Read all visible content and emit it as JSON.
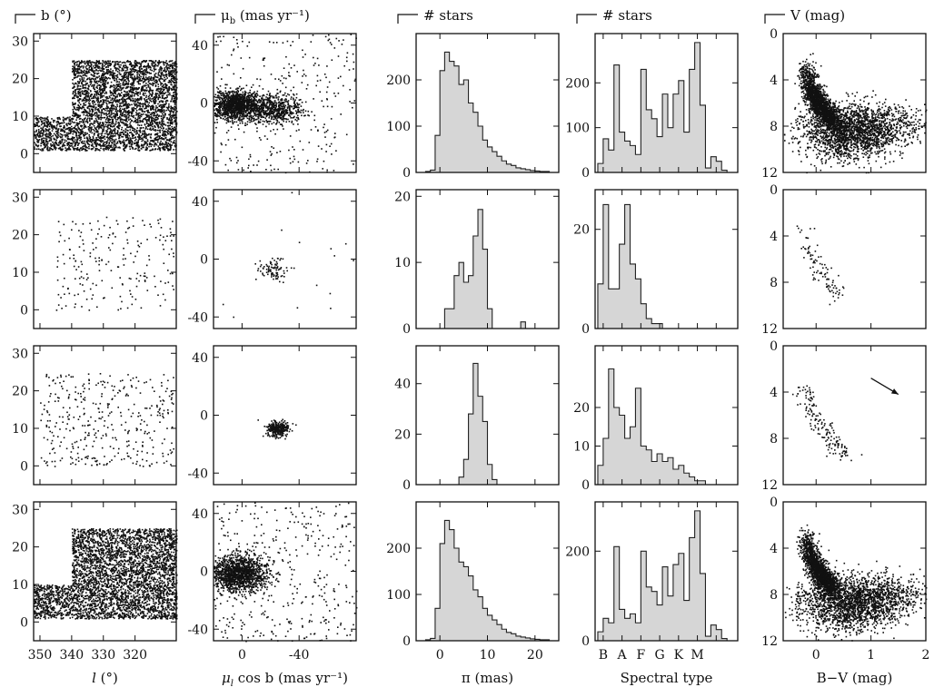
{
  "column_titles": [
    {
      "text": "b (°)"
    },
    {
      "text": "μ",
      "sub": "b",
      "rest": " (mas yr⁻¹)"
    },
    {
      "text": "# stars"
    },
    {
      "text": "# stars"
    },
    {
      "text": "V (mag)"
    }
  ],
  "xlabels": [
    {
      "text": "l",
      "rest": " (°)"
    },
    {
      "text": "μ",
      "sub": "l",
      "rest": " cos b (mas yr⁻¹)"
    },
    {
      "text": "π (mas)"
    },
    {
      "text": "Spectral type"
    },
    {
      "text": "B−V (mag)"
    }
  ],
  "chart_data": [
    {
      "type": "scatter",
      "row": 0,
      "col": 0,
      "name": "galactic-position",
      "xlim": [
        352,
        307
      ],
      "ylim": [
        -5,
        32
      ],
      "xticks": [
        350,
        340,
        330,
        320
      ],
      "yticks": [
        0,
        10,
        20,
        30
      ],
      "region": [
        [
          352,
          340,
          1,
          10
        ],
        [
          340,
          307,
          1,
          25
        ]
      ],
      "density": 1.0
    },
    {
      "type": "scatter",
      "row": 0,
      "col": 1,
      "name": "proper-motion",
      "xlim": [
        20,
        -80
      ],
      "ylim": [
        -48,
        48
      ],
      "xticks": [
        0,
        -40
      ],
      "yticks": [
        -40,
        0,
        40
      ],
      "clusters": [
        [
          5,
          -1,
          8,
          5,
          0.45
        ],
        [
          -22,
          -4,
          10,
          5,
          0.25
        ]
      ],
      "background": 0.3
    },
    {
      "type": "bar",
      "row": 0,
      "col": 2,
      "name": "parallax",
      "xlim": [
        -5,
        25
      ],
      "ylim": [
        0,
        300
      ],
      "xticks": [
        0,
        10,
        20
      ],
      "yticks": [
        0,
        100,
        200
      ],
      "bin_start": -3,
      "bin_width": 1,
      "values": [
        2,
        5,
        80,
        220,
        260,
        240,
        230,
        190,
        200,
        150,
        130,
        100,
        70,
        55,
        45,
        35,
        25,
        18,
        15,
        10,
        8,
        6,
        4,
        3,
        2,
        2
      ]
    },
    {
      "type": "bar",
      "row": 0,
      "col": 3,
      "name": "spectral-type",
      "xlim": [
        -1.5,
        25
      ],
      "ylim": [
        0,
        310
      ],
      "yticks": [
        0,
        100,
        200
      ],
      "xticks_idx": [
        0,
        3.5,
        7,
        10.5,
        14,
        17.5,
        21
      ],
      "xticklabels": [
        "B",
        "A",
        "F",
        "G",
        "K",
        "M",
        ""
      ],
      "bin_start": -1,
      "bin_width": 1,
      "values": [
        20,
        75,
        50,
        240,
        90,
        70,
        60,
        40,
        230,
        140,
        120,
        80,
        175,
        100,
        175,
        205,
        90,
        230,
        290,
        150,
        10,
        35,
        25,
        5
      ]
    },
    {
      "type": "scatter",
      "row": 0,
      "col": 4,
      "name": "color-magnitude",
      "xlim": [
        -0.6,
        2
      ],
      "ylim": [
        12,
        0
      ],
      "xticks": [
        0,
        1,
        2
      ],
      "yticks": [
        0,
        4,
        8,
        12
      ],
      "clusters": [
        [
          0.5,
          8.5,
          0.4,
          1.2,
          0.6
        ],
        [
          1.2,
          8.0,
          0.4,
          1.0,
          0.25
        ]
      ],
      "band": [
        [
          -0.2,
          2.5
        ],
        [
          0.3,
          7.5
        ]
      ],
      "density": 1.0
    },
    {
      "type": "scatter",
      "row": 1,
      "col": 0,
      "name": "galactic-position",
      "xlim": [
        352,
        307
      ],
      "ylim": [
        -5,
        32
      ],
      "xticks": [
        350,
        340,
        330,
        320
      ],
      "yticks": [
        0,
        10,
        20,
        30
      ],
      "region": [
        [
          345,
          308,
          0,
          25
        ]
      ],
      "density": 0.05
    },
    {
      "type": "scatter",
      "row": 1,
      "col": 1,
      "name": "proper-motion",
      "xlim": [
        20,
        -80
      ],
      "ylim": [
        -48,
        48
      ],
      "xticks": [
        0,
        -40
      ],
      "yticks": [
        -40,
        0,
        40
      ],
      "clusters": [
        [
          -22,
          -7,
          6,
          4,
          0.7
        ]
      ],
      "background": 0.3,
      "density": 0.05
    },
    {
      "type": "bar",
      "row": 1,
      "col": 2,
      "name": "parallax",
      "xlim": [
        -5,
        25
      ],
      "ylim": [
        0,
        21
      ],
      "xticks": [
        0,
        10,
        20
      ],
      "yticks": [
        0,
        10,
        20
      ],
      "bin_start": 1,
      "bin_width": 1,
      "values": [
        3,
        3,
        8,
        10,
        7,
        8,
        14,
        18,
        12,
        3,
        0,
        0,
        0,
        0,
        0,
        0,
        1,
        0,
        0,
        0
      ]
    },
    {
      "type": "bar",
      "row": 1,
      "col": 3,
      "name": "spectral-type",
      "xlim": [
        -1.5,
        25
      ],
      "ylim": [
        0,
        28
      ],
      "yticks": [
        0,
        20
      ],
      "xticks_idx": [
        0,
        3.5,
        7,
        10.5,
        14,
        17.5,
        21
      ],
      "xticklabels": [
        "B",
        "A",
        "F",
        "G",
        "K",
        "M",
        ""
      ],
      "bin_start": -1,
      "bin_width": 1,
      "values": [
        9,
        25,
        8,
        8,
        17,
        25,
        13,
        10,
        5,
        2,
        1,
        1,
        0,
        0,
        0,
        0,
        0,
        0,
        0,
        0,
        0,
        0,
        0,
        0
      ]
    },
    {
      "type": "scatter",
      "row": 1,
      "col": 4,
      "name": "color-magnitude",
      "xlim": [
        -0.6,
        2
      ],
      "ylim": [
        12,
        0
      ],
      "xticks": [
        0,
        1,
        2
      ],
      "yticks": [
        0,
        4,
        8,
        12
      ],
      "band": [
        [
          -0.25,
          2.5
        ],
        [
          0.4,
          9.0
        ]
      ],
      "density": 0.06
    },
    {
      "type": "scatter",
      "row": 2,
      "col": 0,
      "name": "galactic-position",
      "xlim": [
        352,
        307
      ],
      "ylim": [
        -5,
        32
      ],
      "xticks": [
        350,
        340,
        330,
        320
      ],
      "yticks": [
        0,
        10,
        20,
        30
      ],
      "region": [
        [
          350,
          308,
          0,
          25
        ]
      ],
      "density": 0.08
    },
    {
      "type": "scatter",
      "row": 2,
      "col": 1,
      "name": "proper-motion",
      "xlim": [
        20,
        -80
      ],
      "ylim": [
        -48,
        48
      ],
      "xticks": [
        0,
        -40
      ],
      "yticks": [
        -40,
        0,
        40
      ],
      "clusters": [
        [
          -25,
          -9,
          4,
          2.5,
          1.0
        ]
      ],
      "background": 0,
      "density": 0.12
    },
    {
      "type": "bar",
      "row": 2,
      "col": 2,
      "name": "parallax",
      "xlim": [
        -5,
        25
      ],
      "ylim": [
        0,
        55
      ],
      "xticks": [
        0,
        10,
        20
      ],
      "yticks": [
        0,
        20,
        40
      ],
      "bin_start": 4,
      "bin_width": 1,
      "values": [
        3,
        10,
        28,
        48,
        35,
        25,
        8,
        2,
        0
      ]
    },
    {
      "type": "bar",
      "row": 2,
      "col": 3,
      "name": "spectral-type",
      "xlim": [
        -1.5,
        25
      ],
      "ylim": [
        0,
        36
      ],
      "yticks": [
        0,
        10,
        20
      ],
      "xticks_idx": [
        0,
        3.5,
        7,
        10.5,
        14,
        17.5,
        21
      ],
      "xticklabels": [
        "B",
        "A",
        "F",
        "G",
        "K",
        "M",
        ""
      ],
      "bin_start": -1,
      "bin_width": 1,
      "values": [
        5,
        12,
        30,
        20,
        18,
        12,
        15,
        25,
        10,
        9,
        6,
        8,
        6,
        7,
        4,
        5,
        3,
        2,
        1,
        1,
        0,
        0,
        0,
        0
      ]
    },
    {
      "type": "scatter",
      "row": 2,
      "col": 4,
      "name": "color-magnitude",
      "xlim": [
        -0.6,
        2
      ],
      "ylim": [
        12,
        0
      ],
      "xticks": [
        0,
        1,
        2
      ],
      "yticks": [
        0,
        4,
        8,
        12
      ],
      "band": [
        [
          -0.25,
          2.5
        ],
        [
          0.6,
          9.5
        ]
      ],
      "density": 0.1,
      "arrow": [
        [
          1.0,
          2.8
        ],
        [
          1.5,
          4.2
        ]
      ]
    },
    {
      "type": "scatter",
      "row": 3,
      "col": 0,
      "name": "galactic-position",
      "xlim": [
        352,
        307
      ],
      "ylim": [
        -5,
        32
      ],
      "xticks": [
        350,
        340,
        330,
        320
      ],
      "yticks": [
        0,
        10,
        20,
        30
      ],
      "region": [
        [
          352,
          340,
          1,
          10
        ],
        [
          340,
          307,
          1,
          25
        ]
      ],
      "density": 1.0
    },
    {
      "type": "scatter",
      "row": 3,
      "col": 1,
      "name": "proper-motion",
      "xlim": [
        20,
        -80
      ],
      "ylim": [
        -48,
        48
      ],
      "xticks": [
        0,
        -40
      ],
      "yticks": [
        -40,
        0,
        40
      ],
      "clusters": [
        [
          3,
          -1,
          10,
          6,
          0.55
        ]
      ],
      "background": 0.4
    },
    {
      "type": "bar",
      "row": 3,
      "col": 2,
      "name": "parallax",
      "xlim": [
        -5,
        25
      ],
      "ylim": [
        0,
        300
      ],
      "xticks": [
        0,
        10,
        20
      ],
      "yticks": [
        0,
        100,
        200
      ],
      "bin_start": -3,
      "bin_width": 1,
      "values": [
        2,
        5,
        70,
        210,
        260,
        240,
        200,
        170,
        160,
        140,
        110,
        95,
        70,
        55,
        45,
        35,
        25,
        18,
        15,
        10,
        8,
        6,
        4,
        3,
        2,
        2
      ]
    },
    {
      "type": "bar",
      "row": 3,
      "col": 3,
      "name": "spectral-type",
      "xlim": [
        -1.5,
        25
      ],
      "ylim": [
        0,
        310
      ],
      "yticks": [
        0,
        200
      ],
      "xticks_idx": [
        0,
        3.5,
        7,
        10.5,
        14,
        17.5,
        21
      ],
      "xticklabels": [
        "B",
        "A",
        "F",
        "G",
        "K",
        "M",
        ""
      ],
      "bin_start": -1,
      "bin_width": 1,
      "values": [
        20,
        50,
        40,
        210,
        70,
        50,
        60,
        40,
        200,
        120,
        110,
        80,
        165,
        100,
        170,
        195,
        90,
        230,
        290,
        150,
        10,
        35,
        25,
        5
      ]
    },
    {
      "type": "scatter",
      "row": 3,
      "col": 4,
      "name": "color-magnitude",
      "xlim": [
        -0.6,
        2
      ],
      "ylim": [
        12,
        0
      ],
      "xticks": [
        0,
        1,
        2
      ],
      "yticks": [
        0,
        4,
        8,
        12
      ],
      "clusters": [
        [
          0.55,
          8.8,
          0.45,
          1.2,
          0.6
        ],
        [
          1.2,
          8.2,
          0.45,
          1.0,
          0.25
        ]
      ],
      "band": [
        [
          -0.2,
          2.5
        ],
        [
          0.3,
          7.5
        ]
      ],
      "density": 1.0
    }
  ]
}
